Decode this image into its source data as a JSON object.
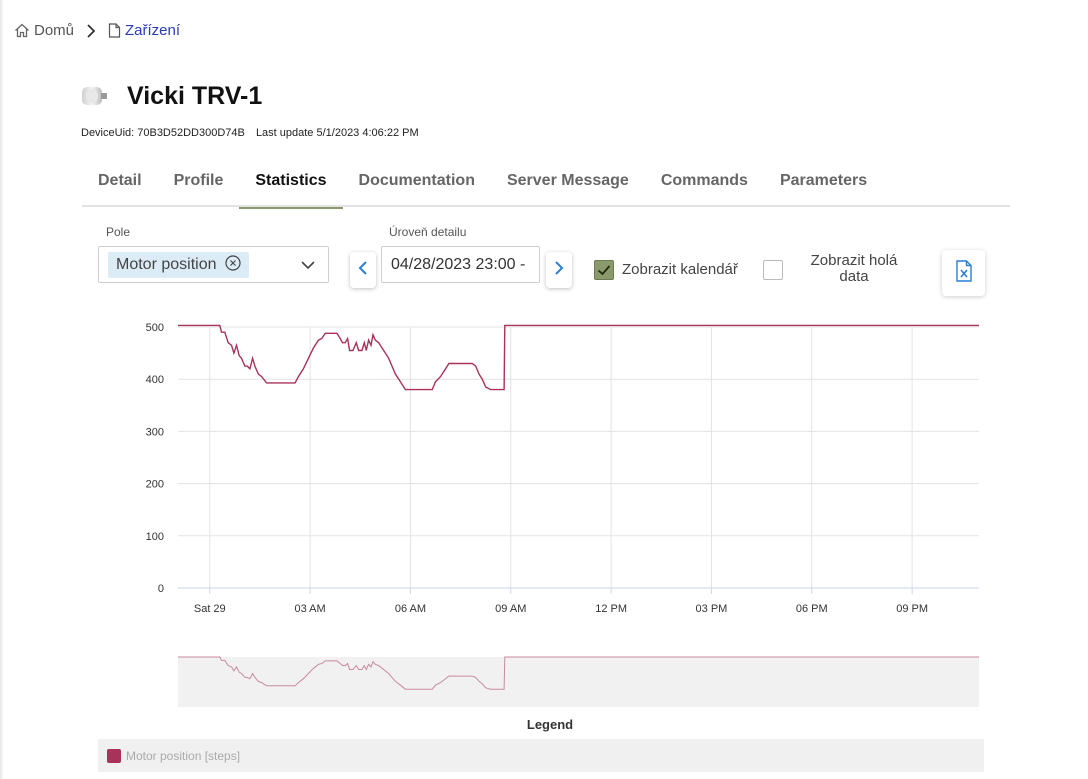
{
  "breadcrumb": {
    "home": "Domů",
    "current": "Zařízení"
  },
  "device": {
    "title": "Vicki TRV-1",
    "uid_label": "DeviceUid: 70B3D52DD300D74B",
    "last_update": "Last update 5/1/2023 4:06:22 PM"
  },
  "tabs": [
    {
      "label": "Detail",
      "active": false
    },
    {
      "label": "Profile",
      "active": false
    },
    {
      "label": "Statistics",
      "active": true
    },
    {
      "label": "Documentation",
      "active": false
    },
    {
      "label": "Server Message",
      "active": false
    },
    {
      "label": "Commands",
      "active": false
    },
    {
      "label": "Parameters",
      "active": false
    }
  ],
  "controls": {
    "field_label": "Pole",
    "field_value": "Motor position",
    "detail_label": "Úroveň detailu",
    "date_value": "04/28/2023 23:00 -",
    "show_calendar_label": "Zobrazit kalendář",
    "show_calendar_checked": true,
    "show_raw_label_line1": "Zobrazit holá",
    "show_raw_label_line2": "data",
    "show_raw_checked": false
  },
  "colors": {
    "series": "#a8325a",
    "accent": "#8a9a6a",
    "link": "#2b3bb8",
    "icon_blue": "#2a7fd4"
  },
  "chart_data": {
    "type": "line",
    "x_unit": "time (Sat 29 Apr 2023)",
    "y_ticks": [
      0,
      100,
      200,
      300,
      400,
      500
    ],
    "ylim": [
      0,
      500
    ],
    "x_ticks": [
      "Sat 29",
      "03 AM",
      "06 AM",
      "09 AM",
      "12 PM",
      "03 PM",
      "06 PM",
      "09 PM"
    ],
    "x_tick_hours": [
      0,
      3,
      6,
      9,
      12,
      15,
      18,
      21
    ],
    "xlim_hours": [
      -0.95,
      23.0
    ],
    "series": [
      {
        "name": "Motor position [steps]",
        "points": [
          [
            -0.95,
            503
          ],
          [
            0.3,
            503
          ],
          [
            0.35,
            490
          ],
          [
            0.45,
            490
          ],
          [
            0.55,
            470
          ],
          [
            0.65,
            465
          ],
          [
            0.72,
            450
          ],
          [
            0.8,
            465
          ],
          [
            0.88,
            445
          ],
          [
            0.95,
            440
          ],
          [
            1.05,
            425
          ],
          [
            1.12,
            425
          ],
          [
            1.2,
            420
          ],
          [
            1.28,
            440
          ],
          [
            1.35,
            425
          ],
          [
            1.45,
            410
          ],
          [
            1.55,
            405
          ],
          [
            1.7,
            393
          ],
          [
            2.0,
            393
          ],
          [
            2.3,
            393
          ],
          [
            2.55,
            393
          ],
          [
            2.65,
            405
          ],
          [
            2.8,
            420
          ],
          [
            2.95,
            440
          ],
          [
            3.1,
            460
          ],
          [
            3.25,
            475
          ],
          [
            3.35,
            478
          ],
          [
            3.45,
            488
          ],
          [
            3.6,
            488
          ],
          [
            3.8,
            488
          ],
          [
            3.9,
            478
          ],
          [
            3.97,
            470
          ],
          [
            4.05,
            470
          ],
          [
            4.12,
            478
          ],
          [
            4.18,
            455
          ],
          [
            4.28,
            455
          ],
          [
            4.38,
            470
          ],
          [
            4.45,
            455
          ],
          [
            4.55,
            455
          ],
          [
            4.62,
            470
          ],
          [
            4.68,
            455
          ],
          [
            4.75,
            475
          ],
          [
            4.82,
            465
          ],
          [
            4.88,
            485
          ],
          [
            4.95,
            475
          ],
          [
            5.05,
            470
          ],
          [
            5.15,
            460
          ],
          [
            5.25,
            450
          ],
          [
            5.35,
            440
          ],
          [
            5.45,
            425
          ],
          [
            5.55,
            410
          ],
          [
            5.7,
            395
          ],
          [
            5.85,
            380
          ],
          [
            6.1,
            380
          ],
          [
            6.4,
            380
          ],
          [
            6.65,
            380
          ],
          [
            6.75,
            395
          ],
          [
            6.9,
            405
          ],
          [
            7.0,
            415
          ],
          [
            7.15,
            430
          ],
          [
            7.5,
            430
          ],
          [
            7.85,
            430
          ],
          [
            7.95,
            425
          ],
          [
            8.05,
            410
          ],
          [
            8.15,
            400
          ],
          [
            8.25,
            385
          ],
          [
            8.4,
            380
          ],
          [
            8.6,
            380
          ],
          [
            8.8,
            380
          ],
          [
            8.82,
            503
          ],
          [
            23.0,
            503
          ]
        ]
      }
    ],
    "legend_title": "Legend",
    "legend": [
      "Motor position [steps]"
    ],
    "legend_position": "bottom",
    "grid": true
  }
}
